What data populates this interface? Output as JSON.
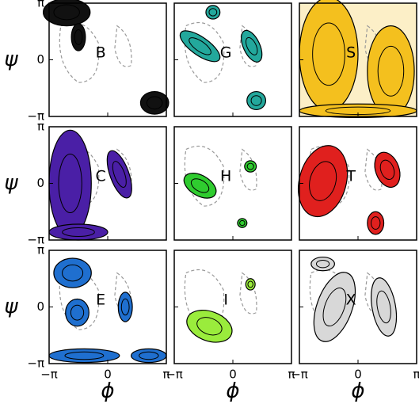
{
  "chart_data": {
    "type": "ramachandran-grid",
    "xlabel": "ϕ",
    "ylabel": "ψ",
    "xlim": [
      -3.141592653589793,
      3.141592653589793
    ],
    "ylim": [
      -3.141592653589793,
      3.141592653589793
    ],
    "xticks": [
      {
        "value": -3.141592653589793,
        "label": "−π"
      },
      0,
      {
        "value": 3.141592653589793,
        "label": "π"
      }
    ],
    "yticks": [
      {
        "value": -3.141592653589793,
        "label": "−π"
      },
      0,
      {
        "value": 3.141592653589793,
        "label": "π"
      }
    ],
    "panels": [
      {
        "label": "B",
        "color": "#111111"
      },
      {
        "label": "G",
        "color": "#23a89c"
      },
      {
        "label": "S",
        "color": "#f4c01e"
      },
      {
        "label": "C",
        "color": "#4a1fa6"
      },
      {
        "label": "H",
        "color": "#2fcc2f"
      },
      {
        "label": "T",
        "color": "#e0201e"
      },
      {
        "label": "E",
        "color": "#1f6fcf"
      },
      {
        "label": "I",
        "color": "#9aec3c"
      },
      {
        "label": "X",
        "color": "#d8d8d8"
      }
    ]
  }
}
